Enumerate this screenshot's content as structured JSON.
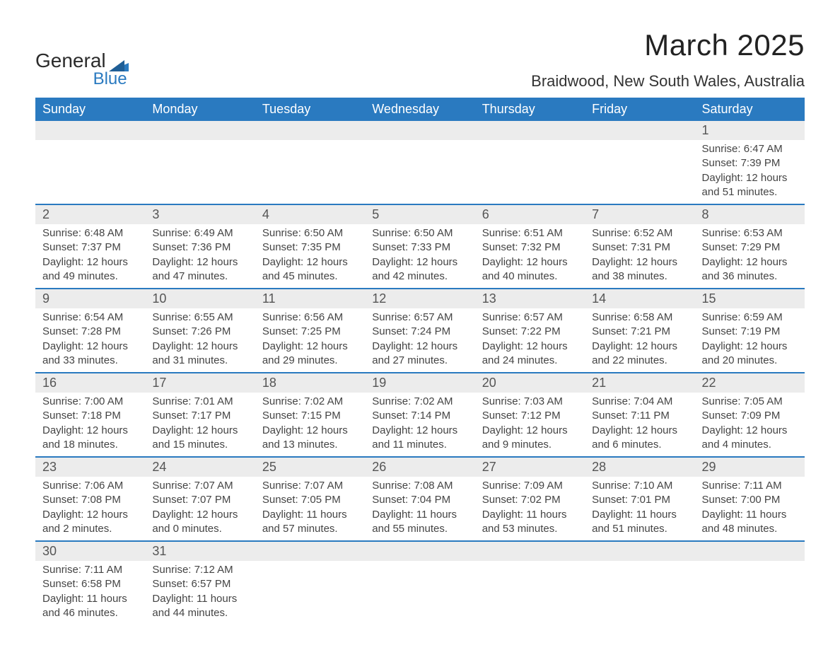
{
  "logo": {
    "line1": "General",
    "line2": "Blue",
    "flag_color": "#2a7ac0"
  },
  "title": "March 2025",
  "location": "Braidwood, New South Wales, Australia",
  "day_headers": [
    "Sunday",
    "Monday",
    "Tuesday",
    "Wednesday",
    "Thursday",
    "Friday",
    "Saturday"
  ],
  "colors": {
    "header_bg": "#2a7ac0",
    "header_fg": "#ffffff",
    "daynum_bg": "#ececec",
    "row_divider": "#2a7ac0",
    "text": "#3a3a3a"
  },
  "typography": {
    "title_fontsize": 42,
    "location_fontsize": 22,
    "header_fontsize": 18,
    "daynum_fontsize": 18,
    "detail_fontsize": 15
  },
  "weeks": [
    [
      null,
      null,
      null,
      null,
      null,
      null,
      {
        "d": "1",
        "sr": "6:47 AM",
        "ss": "7:39 PM",
        "dl": "12 hours and 51 minutes."
      }
    ],
    [
      {
        "d": "2",
        "sr": "6:48 AM",
        "ss": "7:37 PM",
        "dl": "12 hours and 49 minutes."
      },
      {
        "d": "3",
        "sr": "6:49 AM",
        "ss": "7:36 PM",
        "dl": "12 hours and 47 minutes."
      },
      {
        "d": "4",
        "sr": "6:50 AM",
        "ss": "7:35 PM",
        "dl": "12 hours and 45 minutes."
      },
      {
        "d": "5",
        "sr": "6:50 AM",
        "ss": "7:33 PM",
        "dl": "12 hours and 42 minutes."
      },
      {
        "d": "6",
        "sr": "6:51 AM",
        "ss": "7:32 PM",
        "dl": "12 hours and 40 minutes."
      },
      {
        "d": "7",
        "sr": "6:52 AM",
        "ss": "7:31 PM",
        "dl": "12 hours and 38 minutes."
      },
      {
        "d": "8",
        "sr": "6:53 AM",
        "ss": "7:29 PM",
        "dl": "12 hours and 36 minutes."
      }
    ],
    [
      {
        "d": "9",
        "sr": "6:54 AM",
        "ss": "7:28 PM",
        "dl": "12 hours and 33 minutes."
      },
      {
        "d": "10",
        "sr": "6:55 AM",
        "ss": "7:26 PM",
        "dl": "12 hours and 31 minutes."
      },
      {
        "d": "11",
        "sr": "6:56 AM",
        "ss": "7:25 PM",
        "dl": "12 hours and 29 minutes."
      },
      {
        "d": "12",
        "sr": "6:57 AM",
        "ss": "7:24 PM",
        "dl": "12 hours and 27 minutes."
      },
      {
        "d": "13",
        "sr": "6:57 AM",
        "ss": "7:22 PM",
        "dl": "12 hours and 24 minutes."
      },
      {
        "d": "14",
        "sr": "6:58 AM",
        "ss": "7:21 PM",
        "dl": "12 hours and 22 minutes."
      },
      {
        "d": "15",
        "sr": "6:59 AM",
        "ss": "7:19 PM",
        "dl": "12 hours and 20 minutes."
      }
    ],
    [
      {
        "d": "16",
        "sr": "7:00 AM",
        "ss": "7:18 PM",
        "dl": "12 hours and 18 minutes."
      },
      {
        "d": "17",
        "sr": "7:01 AM",
        "ss": "7:17 PM",
        "dl": "12 hours and 15 minutes."
      },
      {
        "d": "18",
        "sr": "7:02 AM",
        "ss": "7:15 PM",
        "dl": "12 hours and 13 minutes."
      },
      {
        "d": "19",
        "sr": "7:02 AM",
        "ss": "7:14 PM",
        "dl": "12 hours and 11 minutes."
      },
      {
        "d": "20",
        "sr": "7:03 AM",
        "ss": "7:12 PM",
        "dl": "12 hours and 9 minutes."
      },
      {
        "d": "21",
        "sr": "7:04 AM",
        "ss": "7:11 PM",
        "dl": "12 hours and 6 minutes."
      },
      {
        "d": "22",
        "sr": "7:05 AM",
        "ss": "7:09 PM",
        "dl": "12 hours and 4 minutes."
      }
    ],
    [
      {
        "d": "23",
        "sr": "7:06 AM",
        "ss": "7:08 PM",
        "dl": "12 hours and 2 minutes."
      },
      {
        "d": "24",
        "sr": "7:07 AM",
        "ss": "7:07 PM",
        "dl": "12 hours and 0 minutes."
      },
      {
        "d": "25",
        "sr": "7:07 AM",
        "ss": "7:05 PM",
        "dl": "11 hours and 57 minutes."
      },
      {
        "d": "26",
        "sr": "7:08 AM",
        "ss": "7:04 PM",
        "dl": "11 hours and 55 minutes."
      },
      {
        "d": "27",
        "sr": "7:09 AM",
        "ss": "7:02 PM",
        "dl": "11 hours and 53 minutes."
      },
      {
        "d": "28",
        "sr": "7:10 AM",
        "ss": "7:01 PM",
        "dl": "11 hours and 51 minutes."
      },
      {
        "d": "29",
        "sr": "7:11 AM",
        "ss": "7:00 PM",
        "dl": "11 hours and 48 minutes."
      }
    ],
    [
      {
        "d": "30",
        "sr": "7:11 AM",
        "ss": "6:58 PM",
        "dl": "11 hours and 46 minutes."
      },
      {
        "d": "31",
        "sr": "7:12 AM",
        "ss": "6:57 PM",
        "dl": "11 hours and 44 minutes."
      },
      null,
      null,
      null,
      null,
      null
    ]
  ],
  "labels": {
    "sunrise": "Sunrise: ",
    "sunset": "Sunset: ",
    "daylight": "Daylight: "
  }
}
